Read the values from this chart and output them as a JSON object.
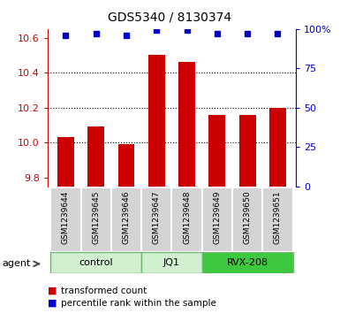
{
  "title": "GDS5340 / 8130374",
  "samples": [
    "GSM1239644",
    "GSM1239645",
    "GSM1239646",
    "GSM1239647",
    "GSM1239648",
    "GSM1239649",
    "GSM1239650",
    "GSM1239651"
  ],
  "red_values": [
    10.03,
    10.09,
    9.99,
    10.5,
    10.46,
    10.16,
    10.16,
    10.2
  ],
  "blue_values": [
    96,
    97,
    96,
    99,
    99,
    97,
    97,
    97
  ],
  "ylim_left": [
    9.75,
    10.65
  ],
  "ylim_right": [
    0,
    100
  ],
  "yticks_left": [
    9.8,
    10.0,
    10.2,
    10.4,
    10.6
  ],
  "yticks_right": [
    0,
    25,
    50,
    75,
    100
  ],
  "left_color": "#cc0000",
  "right_color": "#0000cc",
  "bar_color": "#cc0000",
  "dot_color": "#0000cc",
  "legend_items": [
    "transformed count",
    "percentile rank within the sample"
  ],
  "bg_color": "#d4d4d4",
  "group_bounds": [
    [
      -0.5,
      2.5,
      "control",
      "#d0f0d0"
    ],
    [
      2.5,
      4.5,
      "JQ1",
      "#d0f0d0"
    ],
    [
      4.5,
      7.5,
      "RVX-208",
      "#3ec83e"
    ]
  ],
  "grid_lines": [
    10.0,
    10.2,
    10.4
  ]
}
